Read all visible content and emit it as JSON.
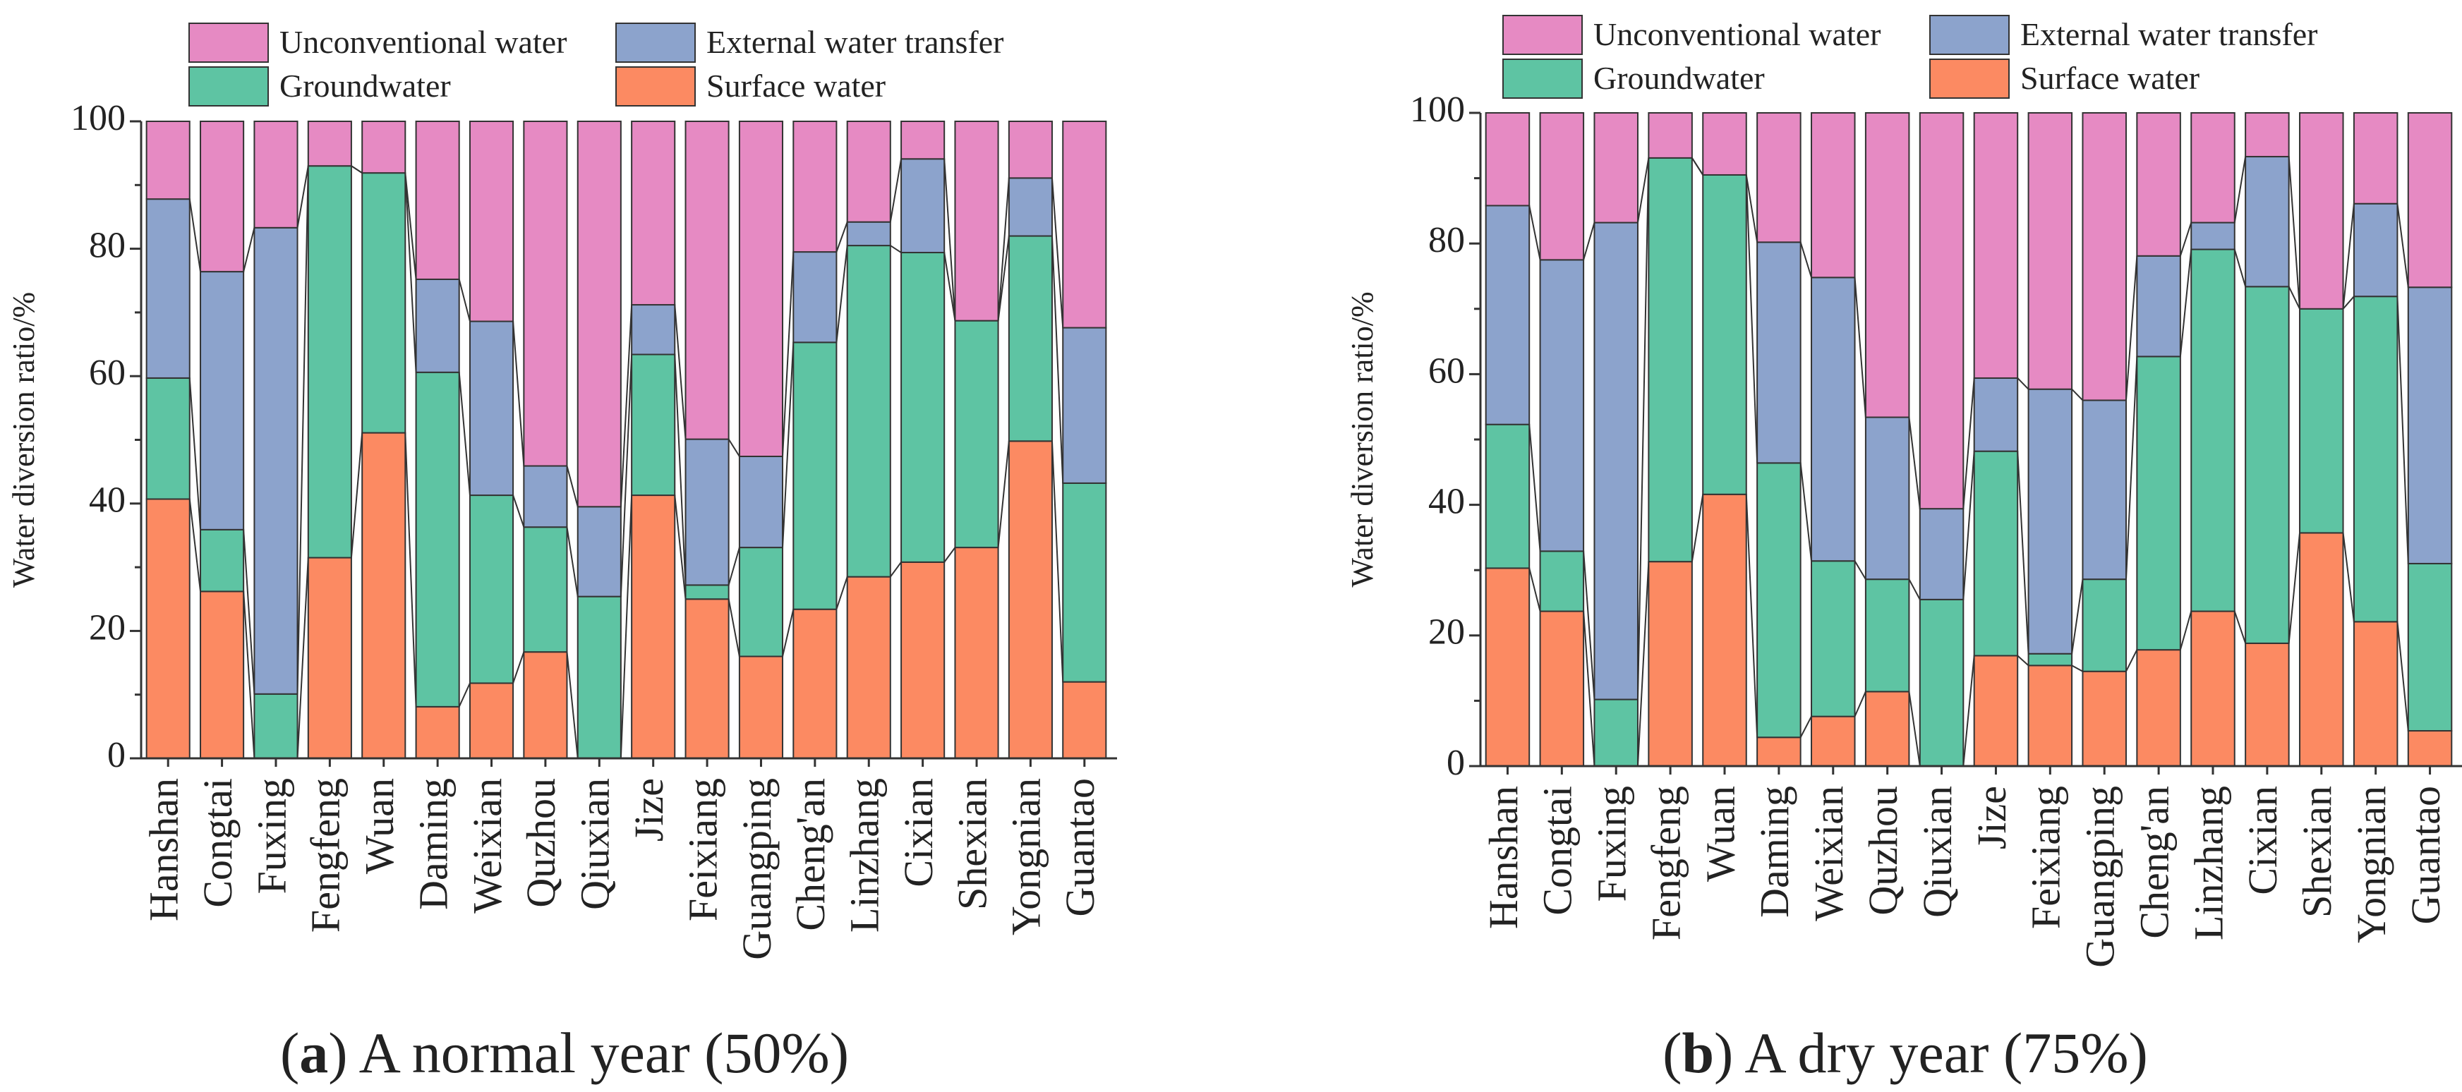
{
  "colors": {
    "unconventional": "#E68AC3",
    "external": "#8CA3CC",
    "groundwater": "#5EC4A3",
    "surface": "#FC8A62"
  },
  "chart_data": [
    {
      "type": "bar",
      "stacked": true,
      "panel_letter": "a",
      "title": "A normal year (50%)",
      "xlabel": "",
      "ylabel": "Water diversion ratio/%",
      "ylim": [
        0,
        100
      ],
      "yticks": [
        "0",
        "20",
        "40",
        "60",
        "80",
        "100"
      ],
      "legend": [
        "Unconventional water",
        "External water transfer",
        "Groundwater",
        "Surface water"
      ],
      "legend_position": "top",
      "categories": [
        "Hanshan",
        "Congtai",
        "Fuxing",
        "Fengfeng",
        "Wuan",
        "Daming",
        "Weixian",
        "Quzhou",
        "Qiuxian",
        "Jize",
        "Feixiang",
        "Guangping",
        "Cheng'an",
        "Linzhang",
        "Cixian",
        "Shexian",
        "Yongnian",
        "Guantao"
      ],
      "series": [
        {
          "name": "Surface water",
          "key": "surface",
          "values": [
            40.7,
            26.2,
            0,
            31.5,
            51.1,
            8.1,
            11.8,
            16.7,
            0,
            41.3,
            25.0,
            16.0,
            23.4,
            28.5,
            30.8,
            33.1,
            49.8,
            12.0
          ]
        },
        {
          "name": "Groundwater",
          "key": "groundwater",
          "values": [
            19.0,
            9.7,
            10.1,
            61.5,
            40.8,
            52.5,
            29.5,
            19.6,
            25.4,
            22.1,
            2.2,
            17.1,
            41.9,
            52.0,
            48.6,
            35.6,
            32.2,
            31.2
          ]
        },
        {
          "name": "External water transfer",
          "key": "external",
          "values": [
            28.1,
            40.5,
            73.2,
            0,
            0,
            14.6,
            27.3,
            9.6,
            14.1,
            7.8,
            22.9,
            14.3,
            14.2,
            3.7,
            14.7,
            0,
            9.1,
            24.4
          ]
        },
        {
          "name": "Unconventional water",
          "key": "unconventional",
          "values": [
            12.2,
            23.6,
            16.7,
            7.0,
            8.1,
            24.8,
            31.4,
            54.1,
            60.5,
            28.8,
            49.9,
            52.6,
            20.5,
            15.8,
            5.9,
            31.3,
            8.9,
            32.4
          ]
        }
      ]
    },
    {
      "type": "bar",
      "stacked": true,
      "panel_letter": "b",
      "title": "A dry year (75%)",
      "xlabel": "",
      "ylabel": "Water diversion ratio/%",
      "ylim": [
        0,
        100
      ],
      "yticks": [
        "0",
        "20",
        "40",
        "60",
        "80",
        "100"
      ],
      "legend": [
        "Unconventional water",
        "External water transfer",
        "Groundwater",
        "Surface water"
      ],
      "legend_position": "top",
      "categories": [
        "Hanshan",
        "Congtai",
        "Fuxing",
        "Fengfeng",
        "Wuan",
        "Daming",
        "Weixian",
        "Quzhou",
        "Qiuxian",
        "Jize",
        "Feixiang",
        "Guangping",
        "Cheng'an",
        "Linzhang",
        "Cixian",
        "Shexian",
        "Yongnian",
        "Guantao"
      ],
      "series": [
        {
          "name": "Surface water",
          "key": "surface",
          "values": [
            30.3,
            23.7,
            0,
            31.3,
            41.6,
            4.4,
            7.6,
            11.4,
            0,
            16.9,
            15.4,
            14.5,
            17.8,
            23.7,
            18.8,
            35.7,
            22.1,
            5.4
          ]
        },
        {
          "name": "Groundwater",
          "key": "groundwater",
          "values": [
            22.0,
            9.2,
            10.2,
            61.8,
            48.9,
            42.0,
            23.8,
            17.2,
            25.5,
            31.3,
            1.8,
            14.1,
            44.9,
            55.4,
            54.6,
            34.3,
            49.8,
            25.6
          ]
        },
        {
          "name": "External water transfer",
          "key": "external",
          "values": [
            33.5,
            44.6,
            73.0,
            0,
            0,
            33.8,
            43.4,
            24.8,
            13.9,
            11.2,
            40.5,
            27.4,
            15.4,
            4.1,
            19.9,
            0,
            14.2,
            42.3
          ]
        },
        {
          "name": "Unconventional water",
          "key": "unconventional",
          "values": [
            14.2,
            22.5,
            16.8,
            6.9,
            9.5,
            19.8,
            25.2,
            46.6,
            60.6,
            40.6,
            42.3,
            44.0,
            21.9,
            16.8,
            6.7,
            30.0,
            13.9,
            26.7
          ]
        }
      ]
    }
  ]
}
